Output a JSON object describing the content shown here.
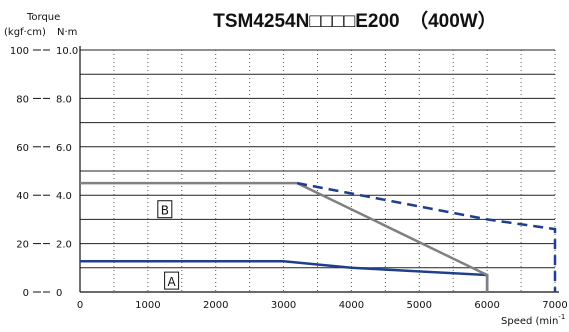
{
  "chart_data": {
    "type": "line",
    "title": "TSM4254N□□□□E200　（400W）",
    "ylabel_top": "Torque",
    "ylabel_left_unit": "(kgf·cm)",
    "ylabel_right_unit": "N·m",
    "xlabel": "Speed (min⁻¹)",
    "xlabel_main": "Speed (min",
    "xlabel_sup": "-1",
    "xlim": [
      0,
      7000
    ],
    "ylim_nm": [
      0,
      10
    ],
    "ylim_kgfcm": [
      0,
      100
    ],
    "x_ticks": [
      "0",
      "1000",
      "2000",
      "3000",
      "4000",
      "5000",
      "6000",
      "7000"
    ],
    "y_ticks_left": [
      "100",
      "80",
      "60",
      "40",
      "20",
      "0"
    ],
    "y_ticks_right": [
      "10.0",
      "8.0",
      "6.0",
      "4.0",
      "2.0",
      "0"
    ],
    "grid": true,
    "series": [
      {
        "name": "A",
        "style": "solid",
        "color": "#1f3f8c",
        "x": [
          0,
          3000,
          4000,
          6000,
          6000
        ],
        "y": [
          1.27,
          1.27,
          1.0,
          0.7,
          0
        ]
      },
      {
        "name": "B",
        "style": "solid",
        "color": "#808080",
        "x": [
          0,
          3200,
          6000,
          6000
        ],
        "y": [
          4.5,
          4.5,
          0.7,
          0
        ]
      },
      {
        "name": "",
        "style": "dashed",
        "color": "#1f3f8c",
        "x": [
          3200,
          6000,
          7000,
          7000
        ],
        "y": [
          4.5,
          3.0,
          2.6,
          0
        ]
      }
    ],
    "legend_boxes": [
      {
        "label": "A",
        "x": 1350,
        "y": 0.45
      },
      {
        "label": "B",
        "x": 1250,
        "y": 3.4
      }
    ]
  }
}
